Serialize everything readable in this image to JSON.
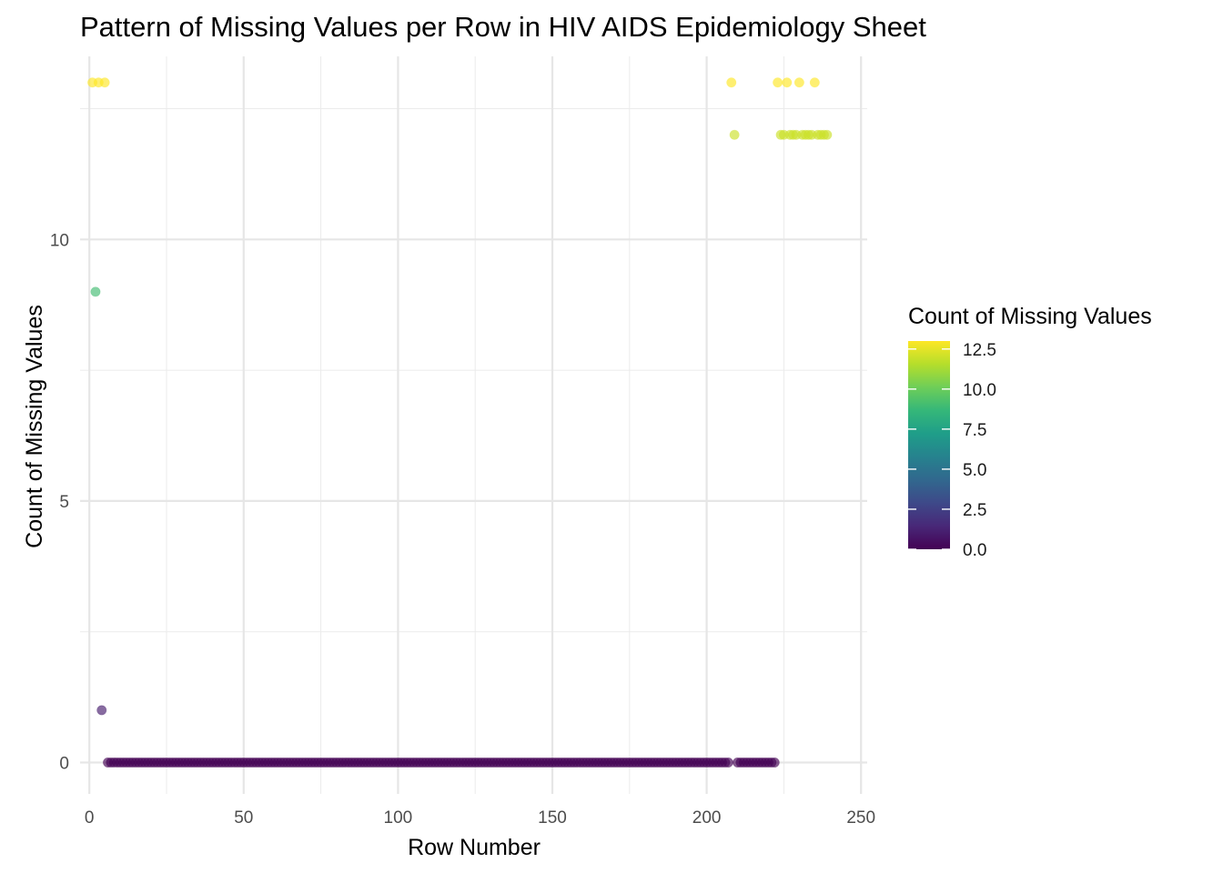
{
  "chart_data": {
    "type": "scatter",
    "title": "Pattern of Missing Values per Row in HIV AIDS Epidemiology Sheet",
    "xlabel": "Row Number",
    "ylabel": "Count of Missing Values",
    "xlim": [
      -3,
      252
    ],
    "ylim": [
      -0.6,
      13.5
    ],
    "x_ticks": [
      0,
      50,
      100,
      150,
      200,
      250
    ],
    "x_tick_labels": [
      "0",
      "50",
      "100",
      "150",
      "200",
      "250"
    ],
    "y_ticks": [
      0,
      5,
      10
    ],
    "y_tick_labels": [
      "0",
      "5",
      "10"
    ],
    "grid": true,
    "legend": {
      "title": "Count of Missing Values",
      "placement": "right",
      "type": "colorbar",
      "range": [
        0,
        13
      ],
      "ticks": [
        0,
        2.5,
        5,
        7.5,
        10,
        12.5
      ],
      "tick_labels": [
        "0.0",
        "2.5",
        "5.0",
        "7.5",
        "10.0",
        "12.5"
      ]
    },
    "colormap": "viridis",
    "point_opacity": 0.65,
    "points": [
      {
        "x": 1,
        "y": 13
      },
      {
        "x": 3,
        "y": 13
      },
      {
        "x": 5,
        "y": 13
      },
      {
        "x": 2,
        "y": 9
      },
      {
        "x": 4,
        "y": 1
      },
      {
        "x": 208,
        "y": 13
      },
      {
        "x": 223,
        "y": 13
      },
      {
        "x": 226,
        "y": 13
      },
      {
        "x": 230,
        "y": 13
      },
      {
        "x": 235,
        "y": 13
      },
      {
        "x": 209,
        "y": 12
      },
      {
        "x": 224,
        "y": 12
      },
      {
        "x": 225,
        "y": 12
      },
      {
        "x": 227,
        "y": 12
      },
      {
        "x": 228,
        "y": 12
      },
      {
        "x": 229,
        "y": 12
      },
      {
        "x": 231,
        "y": 12
      },
      {
        "x": 232,
        "y": 12
      },
      {
        "x": 233,
        "y": 12
      },
      {
        "x": 234,
        "y": 12
      },
      {
        "x": 236,
        "y": 12
      },
      {
        "x": 237,
        "y": 12
      },
      {
        "x": 238,
        "y": 12
      },
      {
        "x": 239,
        "y": 12
      }
    ],
    "zero_runs": [
      [
        6,
        207
      ],
      [
        210,
        222
      ]
    ]
  }
}
